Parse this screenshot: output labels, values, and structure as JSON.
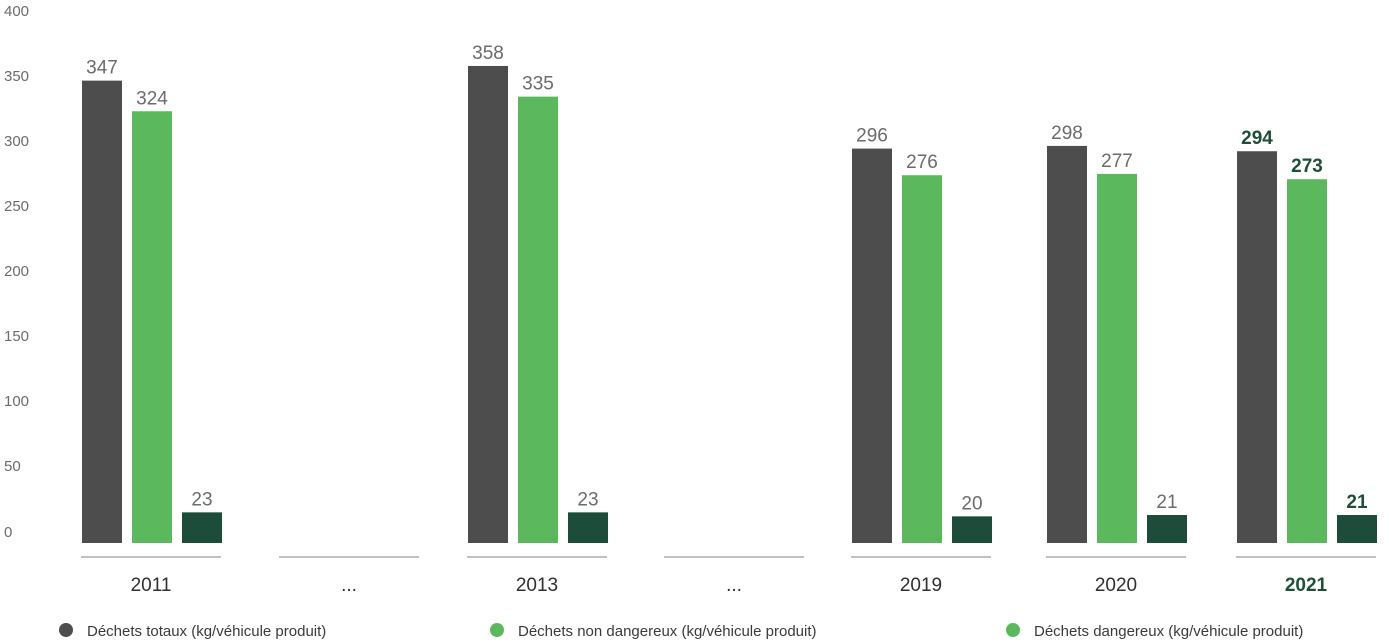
{
  "chart_data": {
    "type": "bar",
    "ylim": [
      0,
      400
    ],
    "yticks": [
      0,
      50,
      100,
      150,
      200,
      250,
      300,
      350,
      400
    ],
    "groups": [
      {
        "label": "2011",
        "values": [
          347,
          324,
          23
        ],
        "value_labels": [
          "347",
          "324",
          "23"
        ],
        "dashed": false,
        "highlight": false
      },
      {
        "label": "...",
        "values": null,
        "dashed": false,
        "highlight": false,
        "gap": true
      },
      {
        "label": "2013",
        "values": [
          358,
          335,
          23
        ],
        "value_labels": [
          "358",
          "335",
          "23"
        ],
        "dashed": false,
        "highlight": false
      },
      {
        "label": "...",
        "values": null,
        "dashed": false,
        "highlight": false,
        "gap": true
      },
      {
        "label": "2019",
        "values": [
          296,
          276,
          20
        ],
        "value_labels": [
          "296",
          "276",
          "20"
        ],
        "dashed": false,
        "highlight": false
      },
      {
        "label": "2020",
        "values": [
          298,
          277,
          21
        ],
        "value_labels": [
          "298",
          "277",
          "21"
        ],
        "dashed": false,
        "highlight": false
      },
      {
        "label": "2021",
        "values": [
          294,
          273,
          21
        ],
        "value_labels": [
          "294",
          "273",
          "21"
        ],
        "dashed": false,
        "highlight": true
      }
    ],
    "series": [
      {
        "name": "Déchets totaux (kg/véhicule produit)",
        "color": "#4d4d4d"
      },
      {
        "name": "Déchets non dangereux (kg/véhicule produit)",
        "color": "#5cb85c"
      },
      {
        "name": "Déchets dangereux (kg/véhicule produit)",
        "color": "#1d4d3a",
        "legend_color": "#5cb85c"
      }
    ],
    "legend_position": "bottom",
    "grid": false
  }
}
